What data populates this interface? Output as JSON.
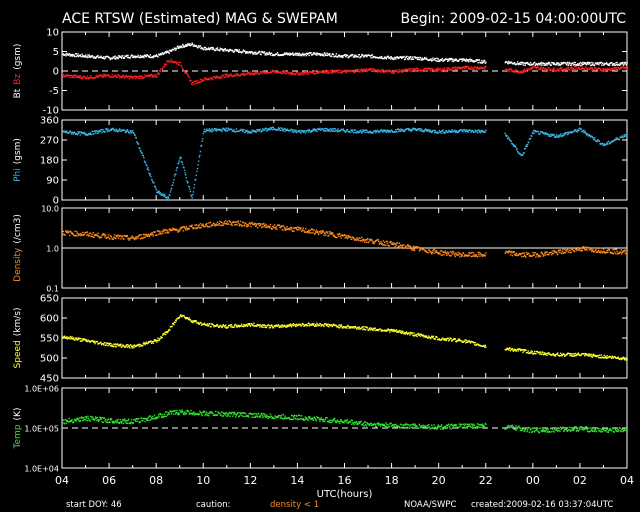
{
  "header": {
    "title": "ACE RTSW (Estimated) MAG & SWEPAM",
    "begin": "Begin: 2009-02-15 04:00:00UTC"
  },
  "footer": {
    "start_doy": "start DOY:  46",
    "caution": "caution:",
    "density_note": "density < 1",
    "source": "NOAA/SWPC",
    "created": "created:2009-02-16 03:37:04UTC"
  },
  "colors": {
    "bt": "#ffffff",
    "bz": "#ff2020",
    "phi": "#3cb4e6",
    "density": "#ff8c1e",
    "speed": "#ffff32",
    "temp": "#32e632",
    "caution": "#ff8c1e"
  },
  "chart_data": [
    {
      "type": "scatter",
      "id": "mag",
      "ylabel_parts": [
        "Bt",
        "Bz",
        "(gsm)"
      ],
      "yticks": [
        "10",
        "5",
        "0",
        "-5",
        "-10"
      ],
      "ylim": [
        -10,
        10
      ],
      "reference_line": 0,
      "x_hours_since_start": [
        0,
        1,
        2,
        3,
        4,
        4.5,
        5,
        5.5,
        6,
        7,
        8,
        9,
        10,
        11,
        12,
        13,
        14,
        15,
        16,
        17,
        18,
        18.3,
        18.8,
        19.5,
        20,
        21,
        22,
        23,
        24
      ],
      "series": [
        {
          "name": "Bt",
          "values": [
            4.5,
            4,
            3.5,
            4,
            4,
            5,
            6.5,
            7,
            6,
            5.5,
            5,
            4.5,
            4.5,
            4.5,
            4,
            4,
            3.5,
            3.5,
            3,
            3,
            2.5,
            null,
            2.5,
            2,
            2,
            2,
            2,
            2,
            2
          ]
        },
        {
          "name": "Bz",
          "values": [
            -1,
            -1.5,
            -1,
            -1.5,
            -1,
            3,
            2,
            -3,
            -2,
            -1,
            -0.5,
            0,
            -0.5,
            0,
            0,
            0.5,
            0,
            0.5,
            0.5,
            1,
            1,
            null,
            0.5,
            0,
            1,
            0.5,
            1,
            0.5,
            1
          ]
        }
      ]
    },
    {
      "type": "scatter",
      "id": "phi",
      "ylabel_parts": [
        "Phi",
        "(gsm)"
      ],
      "yticks": [
        "360",
        "270",
        "180",
        "90",
        "0"
      ],
      "ylim": [
        0,
        360
      ],
      "x_hours_since_start": [
        0,
        1,
        2,
        3,
        4,
        4.5,
        5,
        5.5,
        6,
        7,
        8,
        9,
        10,
        11,
        12,
        13,
        14,
        15,
        16,
        17,
        18,
        18.3,
        18.8,
        19.5,
        20,
        21,
        22,
        23,
        24
      ],
      "series": [
        {
          "name": "Phi",
          "values": [
            310,
            300,
            320,
            310,
            40,
            10,
            200,
            10,
            315,
            320,
            310,
            325,
            310,
            320,
            315,
            310,
            315,
            320,
            310,
            315,
            310,
            null,
            300,
            200,
            310,
            290,
            320,
            250,
            300
          ]
        }
      ]
    },
    {
      "type": "scatter",
      "id": "density",
      "ylabel": "Density (/cm3)",
      "yticks": [
        "10.0",
        "1.0",
        "0.1"
      ],
      "ylim": [
        0.1,
        10
      ],
      "log": true,
      "reference_line": 1,
      "x_hours_since_start": [
        0,
        1,
        2,
        3,
        4,
        4.5,
        5,
        5.5,
        6,
        7,
        8,
        9,
        10,
        11,
        12,
        13,
        14,
        15,
        16,
        17,
        18,
        18.3,
        18.8,
        19.5,
        20,
        21,
        22,
        23,
        24
      ],
      "series": [
        {
          "name": "Density",
          "values": [
            2.5,
            2.3,
            2,
            1.8,
            2.5,
            2.8,
            3,
            3.5,
            3.8,
            4.5,
            4,
            3.5,
            3,
            2.5,
            2,
            1.6,
            1.3,
            1,
            0.8,
            0.7,
            0.7,
            null,
            0.8,
            0.7,
            0.7,
            0.8,
            1,
            0.9,
            0.8
          ]
        }
      ]
    },
    {
      "type": "scatter",
      "id": "speed",
      "ylabel": "Speed (km/s)",
      "yticks": [
        "650",
        "600",
        "550",
        "500",
        "450"
      ],
      "ylim": [
        450,
        650
      ],
      "x_hours_since_start": [
        0,
        1,
        2,
        3,
        4,
        4.5,
        5,
        5.5,
        6,
        7,
        8,
        9,
        10,
        11,
        12,
        13,
        14,
        15,
        16,
        17,
        18,
        18.3,
        18.8,
        19.5,
        20,
        21,
        22,
        23,
        24
      ],
      "series": [
        {
          "name": "Speed",
          "values": [
            555,
            545,
            535,
            530,
            545,
            570,
            610,
            595,
            585,
            580,
            585,
            580,
            585,
            585,
            580,
            575,
            570,
            560,
            550,
            545,
            530,
            null,
            525,
            520,
            515,
            510,
            510,
            505,
            500
          ]
        }
      ]
    },
    {
      "type": "scatter",
      "id": "temp",
      "ylabel": "Temp (K)",
      "yticks": [
        "1.0E+06",
        "1.0E+05",
        "1.0E+04"
      ],
      "ylim": [
        10000,
        1000000
      ],
      "log": true,
      "reference_line": 100000,
      "x_hours_since_start": [
        0,
        1,
        2,
        3,
        4,
        4.5,
        5,
        5.5,
        6,
        7,
        8,
        9,
        10,
        11,
        12,
        13,
        14,
        15,
        16,
        17,
        18,
        18.3,
        18.8,
        19.5,
        20,
        21,
        22,
        23,
        24
      ],
      "series": [
        {
          "name": "Temp",
          "values": [
            150000,
            180000,
            160000,
            150000,
            200000,
            240000,
            260000,
            250000,
            240000,
            230000,
            220000,
            200000,
            190000,
            170000,
            150000,
            130000,
            120000,
            115000,
            110000,
            115000,
            120000,
            null,
            110000,
            100000,
            90000,
            95000,
            100000,
            90000,
            95000
          ]
        }
      ]
    }
  ],
  "xaxis": {
    "label": "UTC(hours)",
    "ticks": [
      "04",
      "06",
      "08",
      "10",
      "12",
      "14",
      "16",
      "18",
      "20",
      "22",
      "00",
      "02",
      "04"
    ]
  }
}
